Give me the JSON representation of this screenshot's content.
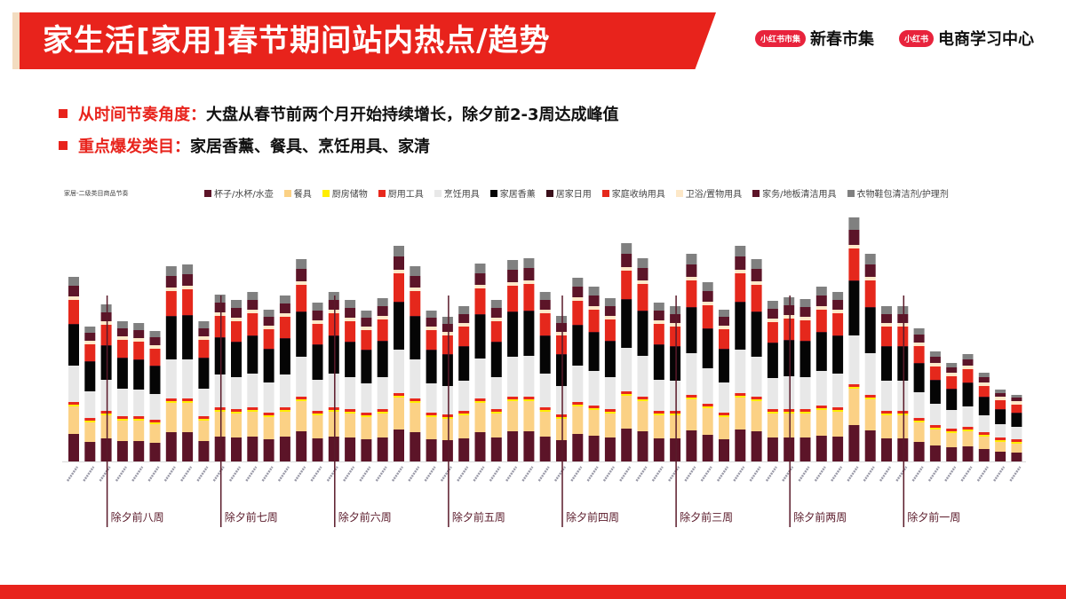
{
  "header": {
    "title": "家生活[家用]春节期间站内热点/趋势",
    "brand1_badge": "小红书市集",
    "brand1_text": "新春市集",
    "brand2_badge": "小红书",
    "brand2_text": "电商学习中心"
  },
  "bullets": [
    {
      "label": "从时间节奏角度：",
      "text": "大盘从春节前两个月开始持续增长，除夕前2-3周达成峰值"
    },
    {
      "label": "重点爆发类目：",
      "text": "家居香薰、餐具、烹饪用具、家清"
    }
  ],
  "chart_data": {
    "type": "bar",
    "stacked": true,
    "title": "家居-二级类目商品节奏",
    "legend_position": "top",
    "grid": false,
    "week_markers": [
      "除夕前八周",
      "除夕前七周",
      "除夕前六周",
      "除夕前五周",
      "除夕前四周",
      "除夕前三周",
      "除夕前两周",
      "除夕前一周"
    ],
    "week_marker_bar_index": [
      2,
      9,
      16,
      23,
      30,
      37,
      44,
      51
    ],
    "series": [
      {
        "name": "杯子/水杯/水壶",
        "color": "#5c1428",
        "values": [
          31,
          22,
          26,
          23,
          23,
          21,
          33,
          33,
          23,
          28,
          27,
          28,
          25,
          28,
          34,
          26,
          28,
          27,
          25,
          27,
          36,
          33,
          25,
          24,
          26,
          33,
          27,
          34,
          34,
          28,
          24,
          31,
          29,
          27,
          37,
          34,
          26,
          26,
          35,
          30,
          25,
          36,
          34,
          27,
          27,
          27,
          29,
          28,
          41,
          35,
          26,
          26,
          22,
          18,
          16,
          17,
          14,
          11,
          10
        ]
      },
      {
        "name": "餐具",
        "color": "#fbd185",
        "values": [
          31,
          22,
          26,
          23,
          23,
          21,
          33,
          33,
          23,
          28,
          27,
          28,
          25,
          28,
          34,
          26,
          28,
          27,
          25,
          27,
          36,
          33,
          25,
          24,
          26,
          33,
          27,
          34,
          34,
          28,
          24,
          31,
          29,
          27,
          37,
          34,
          26,
          26,
          35,
          30,
          25,
          36,
          34,
          27,
          27,
          27,
          29,
          28,
          41,
          35,
          26,
          26,
          22,
          18,
          16,
          17,
          14,
          11,
          10
        ]
      },
      {
        "name": "厨房储物",
        "color": "#ffee00",
        "values": [
          2,
          2,
          2,
          2,
          2,
          2,
          2,
          2,
          2,
          2,
          2,
          2,
          2,
          2,
          2,
          2,
          2,
          2,
          2,
          2,
          2,
          2,
          2,
          2,
          2,
          2,
          2,
          2,
          2,
          2,
          2,
          2,
          2,
          2,
          2,
          2,
          2,
          2,
          2,
          2,
          2,
          2,
          2,
          2,
          2,
          2,
          2,
          2,
          2,
          2,
          2,
          2,
          2,
          2,
          2,
          2,
          2,
          2,
          2
        ]
      },
      {
        "name": "厨用工具",
        "color": "#e8281c",
        "values": [
          3,
          3,
          3,
          3,
          3,
          3,
          3,
          3,
          3,
          3,
          3,
          3,
          3,
          3,
          3,
          3,
          3,
          3,
          3,
          3,
          3,
          3,
          3,
          3,
          3,
          3,
          3,
          3,
          3,
          3,
          3,
          3,
          3,
          3,
          3,
          3,
          3,
          3,
          3,
          3,
          3,
          3,
          3,
          3,
          3,
          3,
          3,
          3,
          3,
          3,
          3,
          3,
          3,
          3,
          3,
          3,
          3,
          3,
          3
        ]
      },
      {
        "name": "烹饪用具",
        "color": "#e8e8e8",
        "values": [
          41,
          30,
          35,
          31,
          30,
          29,
          44,
          44,
          31,
          37,
          36,
          38,
          34,
          37,
          45,
          35,
          38,
          36,
          33,
          36,
          49,
          44,
          33,
          32,
          34,
          45,
          36,
          45,
          46,
          38,
          32,
          41,
          39,
          36,
          49,
          46,
          35,
          34,
          47,
          40,
          34,
          49,
          45,
          35,
          37,
          36,
          39,
          38,
          55,
          47,
          34,
          34,
          29,
          24,
          21,
          23,
          19,
          15,
          14
        ]
      },
      {
        "name": "家居香薰",
        "color": "#050505",
        "values": [
          46,
          33,
          38,
          34,
          33,
          31,
          48,
          49,
          34,
          41,
          39,
          42,
          37,
          40,
          50,
          39,
          42,
          39,
          37,
          40,
          53,
          48,
          37,
          35,
          38,
          49,
          39,
          50,
          50,
          42,
          35,
          45,
          43,
          40,
          54,
          50,
          39,
          38,
          51,
          44,
          37,
          53,
          50,
          39,
          40,
          40,
          43,
          42,
          61,
          51,
          38,
          38,
          32,
          26,
          23,
          26,
          20,
          16,
          15
        ]
      },
      {
        "name": "居家日用",
        "color": "#3a0f1a",
        "values": [
          1,
          1,
          1,
          1,
          1,
          1,
          1,
          1,
          1,
          1,
          1,
          1,
          1,
          1,
          1,
          1,
          1,
          1,
          1,
          1,
          1,
          1,
          1,
          1,
          1,
          1,
          1,
          1,
          1,
          1,
          1,
          1,
          1,
          1,
          1,
          1,
          1,
          1,
          1,
          1,
          1,
          1,
          1,
          1,
          1,
          1,
          1,
          1,
          1,
          1,
          1,
          1,
          1,
          1,
          1,
          1,
          1,
          1,
          1
        ]
      },
      {
        "name": "家庭收纳用具",
        "color": "#e5281c",
        "values": [
          27,
          19,
          23,
          20,
          20,
          19,
          28,
          29,
          20,
          24,
          23,
          25,
          22,
          24,
          30,
          23,
          25,
          23,
          22,
          24,
          32,
          28,
          22,
          21,
          22,
          29,
          23,
          29,
          30,
          25,
          21,
          27,
          25,
          24,
          32,
          30,
          23,
          22,
          30,
          26,
          22,
          32,
          30,
          23,
          24,
          23,
          25,
          25,
          36,
          30,
          22,
          22,
          19,
          15,
          14,
          15,
          12,
          10,
          9
        ]
      },
      {
        "name": "卫浴/置物用具",
        "color": "#fde8c8",
        "values": [
          4,
          4,
          4,
          4,
          4,
          4,
          4,
          4,
          4,
          4,
          4,
          4,
          4,
          4,
          4,
          4,
          4,
          4,
          4,
          4,
          4,
          4,
          4,
          4,
          4,
          4,
          4,
          4,
          4,
          4,
          4,
          4,
          4,
          4,
          4,
          4,
          4,
          4,
          4,
          4,
          4,
          4,
          4,
          4,
          4,
          4,
          4,
          4,
          4,
          4,
          4,
          4,
          4,
          4,
          4,
          4,
          4,
          4,
          4
        ]
      },
      {
        "name": "家务/地板清洁用具",
        "color": "#5c1428",
        "values": [
          12,
          9,
          10,
          9,
          9,
          9,
          13,
          13,
          9,
          11,
          11,
          11,
          10,
          11,
          14,
          11,
          11,
          11,
          10,
          11,
          15,
          13,
          10,
          9,
          10,
          13,
          11,
          14,
          14,
          11,
          10,
          12,
          12,
          11,
          15,
          14,
          11,
          10,
          14,
          12,
          10,
          15,
          14,
          11,
          11,
          11,
          12,
          11,
          17,
          14,
          10,
          10,
          9,
          7,
          6,
          7,
          6,
          4,
          4
        ]
      },
      {
        "name": "衣物鞋包清洁剂/护理剂",
        "color": "#808080",
        "values": [
          10,
          7,
          9,
          8,
          8,
          7,
          11,
          11,
          8,
          9,
          9,
          9,
          8,
          9,
          11,
          9,
          9,
          9,
          8,
          9,
          12,
          11,
          8,
          8,
          9,
          11,
          9,
          11,
          11,
          9,
          8,
          10,
          10,
          9,
          12,
          11,
          9,
          9,
          12,
          10,
          8,
          12,
          11,
          9,
          9,
          9,
          10,
          9,
          14,
          12,
          9,
          9,
          7,
          6,
          5,
          6,
          5,
          4,
          3
        ]
      }
    ]
  }
}
